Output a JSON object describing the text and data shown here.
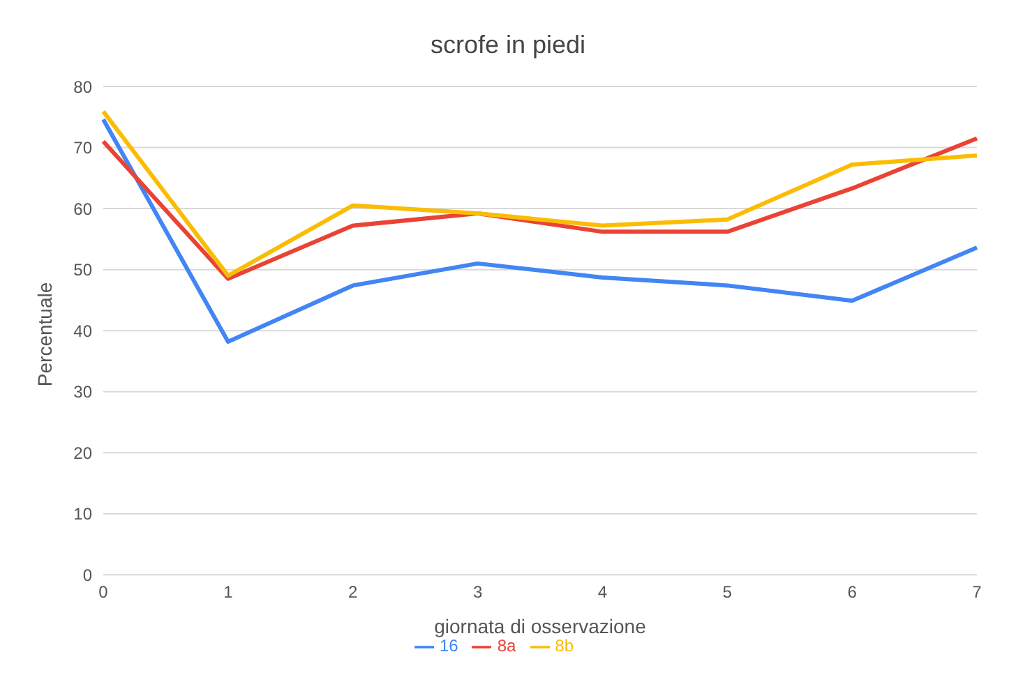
{
  "chart_data": {
    "type": "line",
    "title": "scrofe in piedi",
    "xlabel": "giornata di osservazione",
    "ylabel": "Percentuale",
    "categories": [
      "0",
      "1",
      "2",
      "3",
      "4",
      "5",
      "6",
      "7"
    ],
    "series": [
      {
        "name": "16",
        "color": "#4285f4",
        "values": [
          74.6,
          38.2,
          47.4,
          51,
          48.7,
          47.4,
          44.9,
          53.6
        ]
      },
      {
        "name": "8a",
        "color": "#ea4335",
        "values": [
          71,
          48.5,
          57.2,
          59.2,
          56.2,
          56.2,
          63.3,
          71.5
        ]
      },
      {
        "name": "8b",
        "color": "#fbbc04",
        "values": [
          75.9,
          49,
          60.5,
          59.2,
          57.2,
          58.2,
          67.2,
          68.7
        ]
      }
    ],
    "ylim": [
      0,
      80
    ],
    "yticks": [
      0,
      10,
      20,
      30,
      40,
      50,
      60,
      70,
      80
    ],
    "grid": "y",
    "legend": "bottom",
    "marker": "none",
    "line_style": "solid"
  }
}
